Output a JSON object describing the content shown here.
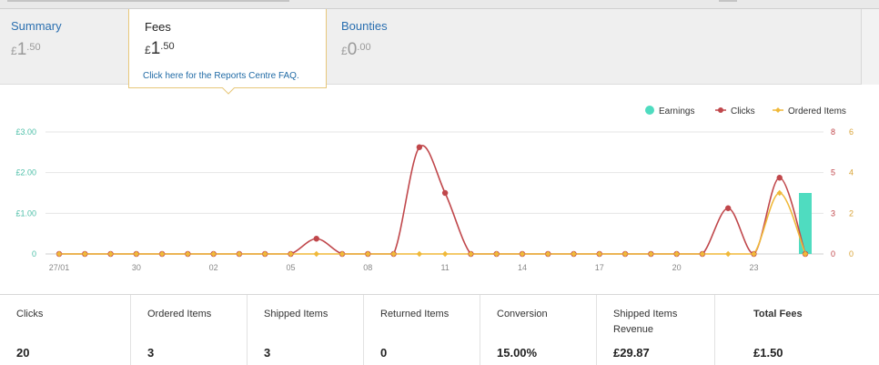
{
  "tabs": {
    "summary": {
      "title": "Summary",
      "currency": "£",
      "whole": "1",
      "fraction": ".50"
    },
    "fees": {
      "title": "Fees",
      "currency": "£",
      "whole": "1",
      "fraction": ".50",
      "faq_link": "Click here for the Reports Centre FAQ."
    },
    "bounties": {
      "title": "Bounties",
      "currency": "£",
      "whole": "0",
      "fraction": ".00"
    }
  },
  "legend": {
    "earnings": "Earnings",
    "clicks": "Clicks",
    "ordered_items": "Ordered Items"
  },
  "colors": {
    "earnings": "#4fdcc0",
    "clicks": "#c0474b",
    "ordered_items": "#f0b93a",
    "left_axis": "#4dbfa8",
    "mid_axis": "#c0474b",
    "right_axis": "#d9a336",
    "tab_link": "#2a6fb0"
  },
  "chart_data": {
    "type": "line",
    "x_tick_labels": [
      "27/01",
      "30",
      "02",
      "05",
      "08",
      "11",
      "14",
      "17",
      "20",
      "23"
    ],
    "x_tick_index": [
      0,
      3,
      6,
      9,
      12,
      15,
      18,
      21,
      24,
      27
    ],
    "point_count": 30,
    "y_left_ticks": [
      "0",
      "£1.00",
      "£2.00",
      "£3.00"
    ],
    "y_left_range": [
      0,
      3
    ],
    "y_clicks_ticks": [
      "0",
      "3",
      "5",
      "8"
    ],
    "y_clicks_range": [
      0,
      8
    ],
    "y_orders_ticks": [
      "0",
      "2",
      "4",
      "6"
    ],
    "y_orders_range": [
      0,
      6
    ],
    "series": [
      {
        "key": "earnings",
        "name": "Earnings",
        "kind": "bar",
        "axis": "left",
        "values": [
          0,
          0,
          0,
          0,
          0,
          0,
          0,
          0,
          0,
          0,
          0,
          0,
          0,
          0,
          0,
          0,
          0,
          0,
          0,
          0,
          0,
          0,
          0,
          0,
          0,
          0,
          0,
          0,
          0,
          1.5
        ]
      },
      {
        "key": "clicks",
        "name": "Clicks",
        "kind": "line",
        "axis": "clicks",
        "values": [
          0,
          0,
          0,
          0,
          0,
          0,
          0,
          0,
          0,
          0,
          1,
          0,
          0,
          0,
          7,
          4,
          0,
          0,
          0,
          0,
          0,
          0,
          0,
          0,
          0,
          0,
          3,
          0,
          5,
          0
        ]
      },
      {
        "key": "ordered_items",
        "name": "Ordered Items",
        "kind": "line",
        "axis": "orders",
        "values": [
          0,
          0,
          0,
          0,
          0,
          0,
          0,
          0,
          0,
          0,
          0,
          0,
          0,
          0,
          0,
          0,
          0,
          0,
          0,
          0,
          0,
          0,
          0,
          0,
          0,
          0,
          0,
          0,
          3,
          0
        ]
      }
    ]
  },
  "metrics": [
    {
      "label": "Clicks",
      "value": "20"
    },
    {
      "label": "Ordered Items",
      "value": "3"
    },
    {
      "label": "Shipped Items",
      "value": "3"
    },
    {
      "label": "Returned Items",
      "value": "0"
    },
    {
      "label": "Conversion",
      "value": "15.00%"
    },
    {
      "label": "Shipped Items Revenue",
      "value": "£29.87"
    },
    {
      "label": "Total Fees",
      "value": "£1.50"
    }
  ]
}
